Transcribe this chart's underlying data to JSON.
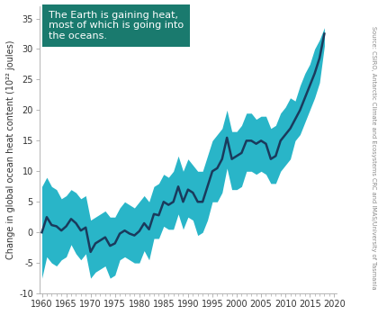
{
  "ylabel": "Change in global ocean heat content (10²² joules)",
  "source_text": "Source: CSIRO, Antarctic Climate and Ecosystems CRC and IMAS/University of Tasmania",
  "annotation": "The Earth is gaining heat,\nmost of which is going into\nthe oceans.",
  "annotation_bg": "#1a7a6e",
  "annotation_text_color": "#ffffff",
  "line_color": "#1a3a5c",
  "band_color": "#29b5c8",
  "bg_color": "#ffffff",
  "xlim": [
    1959.5,
    2020.5
  ],
  "ylim": [
    -10,
    37
  ],
  "yticks": [
    -10,
    -5,
    0,
    5,
    10,
    15,
    20,
    25,
    30,
    35
  ],
  "xticks": [
    1960,
    1965,
    1970,
    1975,
    1980,
    1985,
    1990,
    1995,
    2000,
    2005,
    2010,
    2015,
    2020
  ],
  "years": [
    1960,
    1961,
    1962,
    1963,
    1964,
    1965,
    1966,
    1967,
    1968,
    1969,
    1970,
    1971,
    1972,
    1973,
    1974,
    1975,
    1976,
    1977,
    1978,
    1979,
    1980,
    1981,
    1982,
    1983,
    1984,
    1985,
    1986,
    1987,
    1988,
    1989,
    1990,
    1991,
    1992,
    1993,
    1994,
    1995,
    1996,
    1997,
    1998,
    1999,
    2000,
    2001,
    2002,
    2003,
    2004,
    2005,
    2006,
    2007,
    2008,
    2009,
    2010,
    2011,
    2012,
    2013,
    2014,
    2015,
    2016,
    2017,
    2018
  ],
  "mean": [
    0.0,
    2.5,
    1.2,
    1.0,
    0.3,
    1.0,
    2.2,
    1.5,
    0.3,
    0.8,
    -3.2,
    -1.8,
    -1.3,
    -0.8,
    -2.2,
    -1.8,
    -0.2,
    0.3,
    -0.2,
    -0.5,
    0.2,
    1.5,
    0.5,
    3.0,
    2.8,
    5.0,
    4.5,
    5.0,
    7.5,
    5.0,
    7.0,
    6.5,
    5.0,
    5.0,
    7.5,
    10.0,
    10.5,
    12.0,
    15.5,
    12.0,
    12.5,
    13.0,
    15.0,
    15.0,
    14.5,
    15.0,
    14.5,
    12.0,
    12.5,
    15.0,
    16.0,
    17.0,
    18.5,
    20.0,
    22.0,
    24.0,
    26.0,
    28.5,
    32.5
  ],
  "upper": [
    7.5,
    9.0,
    7.5,
    7.0,
    5.5,
    6.0,
    7.0,
    6.5,
    5.5,
    6.0,
    2.0,
    2.5,
    3.0,
    3.5,
    2.5,
    2.5,
    4.0,
    5.0,
    4.5,
    4.0,
    5.0,
    6.0,
    5.0,
    7.5,
    8.0,
    9.5,
    9.0,
    10.0,
    12.5,
    10.0,
    12.0,
    11.0,
    10.0,
    10.0,
    12.5,
    15.0,
    16.0,
    17.0,
    20.0,
    16.5,
    16.5,
    17.5,
    19.5,
    19.5,
    18.5,
    19.0,
    19.0,
    17.0,
    17.5,
    19.5,
    20.5,
    22.0,
    21.5,
    24.0,
    26.0,
    27.5,
    30.0,
    31.5,
    33.5
  ],
  "lower": [
    -7.5,
    -4.0,
    -5.0,
    -5.5,
    -4.5,
    -4.0,
    -2.0,
    -3.5,
    -4.5,
    -3.5,
    -7.5,
    -6.5,
    -6.0,
    -5.5,
    -7.5,
    -7.0,
    -4.5,
    -4.0,
    -4.5,
    -5.0,
    -5.0,
    -3.0,
    -4.5,
    -1.0,
    -1.0,
    1.0,
    0.5,
    0.5,
    3.0,
    0.5,
    2.5,
    2.0,
    -0.5,
    0.0,
    2.0,
    5.0,
    5.0,
    6.5,
    10.5,
    7.0,
    7.0,
    7.5,
    10.0,
    10.0,
    9.5,
    10.0,
    9.5,
    8.0,
    8.0,
    10.0,
    11.0,
    12.0,
    15.0,
    16.0,
    18.0,
    20.0,
    22.0,
    24.5,
    30.5
  ]
}
